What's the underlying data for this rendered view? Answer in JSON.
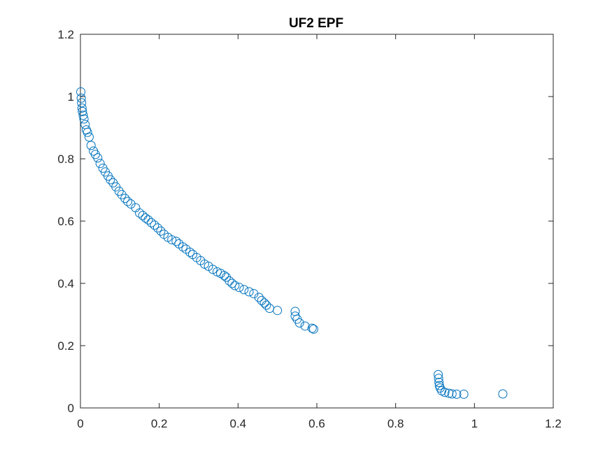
{
  "chart_data": {
    "type": "scatter",
    "title": "UF2 EPF",
    "xlabel": "",
    "ylabel": "",
    "xlim": [
      0,
      1.2
    ],
    "ylim": [
      0,
      1.2
    ],
    "xticks": [
      0,
      0.2,
      0.4,
      0.6,
      0.8,
      1,
      1.2
    ],
    "yticks": [
      0,
      0.2,
      0.4,
      0.6,
      0.8,
      1,
      1.2
    ],
    "xtick_labels": [
      "0",
      "0.2",
      "0.4",
      "0.6",
      "0.8",
      "1",
      "1.2"
    ],
    "ytick_labels": [
      "0",
      "0.2",
      "0.4",
      "0.6",
      "0.8",
      "1",
      "1.2"
    ],
    "grid": false,
    "marker": "circle-open",
    "color": "#0072BD",
    "series": [
      {
        "name": "EPF",
        "points": [
          [
            0.001,
            1.015
          ],
          [
            0.002,
            0.995
          ],
          [
            0.003,
            0.98
          ],
          [
            0.004,
            0.963
          ],
          [
            0.005,
            0.952
          ],
          [
            0.007,
            0.94
          ],
          [
            0.009,
            0.928
          ],
          [
            0.012,
            0.91
          ],
          [
            0.015,
            0.893
          ],
          [
            0.018,
            0.885
          ],
          [
            0.022,
            0.87
          ],
          [
            0.027,
            0.843
          ],
          [
            0.033,
            0.825
          ],
          [
            0.038,
            0.814
          ],
          [
            0.044,
            0.803
          ],
          [
            0.05,
            0.785
          ],
          [
            0.057,
            0.77
          ],
          [
            0.063,
            0.758
          ],
          [
            0.07,
            0.745
          ],
          [
            0.076,
            0.733
          ],
          [
            0.083,
            0.723
          ],
          [
            0.09,
            0.71
          ],
          [
            0.098,
            0.696
          ],
          [
            0.105,
            0.685
          ],
          [
            0.113,
            0.673
          ],
          [
            0.12,
            0.663
          ],
          [
            0.128,
            0.655
          ],
          [
            0.14,
            0.643
          ],
          [
            0.15,
            0.626
          ],
          [
            0.158,
            0.618
          ],
          [
            0.165,
            0.61
          ],
          [
            0.172,
            0.604
          ],
          [
            0.18,
            0.595
          ],
          [
            0.188,
            0.587
          ],
          [
            0.196,
            0.578
          ],
          [
            0.204,
            0.568
          ],
          [
            0.212,
            0.558
          ],
          [
            0.222,
            0.548
          ],
          [
            0.232,
            0.54
          ],
          [
            0.243,
            0.535
          ],
          [
            0.25,
            0.527
          ],
          [
            0.26,
            0.517
          ],
          [
            0.268,
            0.51
          ],
          [
            0.278,
            0.5
          ],
          [
            0.285,
            0.493
          ],
          [
            0.295,
            0.483
          ],
          [
            0.305,
            0.473
          ],
          [
            0.315,
            0.462
          ],
          [
            0.325,
            0.455
          ],
          [
            0.336,
            0.445
          ],
          [
            0.347,
            0.437
          ],
          [
            0.356,
            0.432
          ],
          [
            0.365,
            0.425
          ],
          [
            0.37,
            0.42
          ],
          [
            0.378,
            0.408
          ],
          [
            0.385,
            0.4
          ],
          [
            0.392,
            0.393
          ],
          [
            0.403,
            0.387
          ],
          [
            0.415,
            0.38
          ],
          [
            0.428,
            0.373
          ],
          [
            0.44,
            0.367
          ],
          [
            0.453,
            0.355
          ],
          [
            0.46,
            0.345
          ],
          [
            0.467,
            0.337
          ],
          [
            0.472,
            0.33
          ],
          [
            0.48,
            0.32
          ],
          [
            0.5,
            0.313
          ],
          [
            0.545,
            0.31
          ],
          [
            0.545,
            0.295
          ],
          [
            0.55,
            0.285
          ],
          [
            0.556,
            0.273
          ],
          [
            0.57,
            0.263
          ],
          [
            0.588,
            0.256
          ],
          [
            0.592,
            0.253
          ],
          [
            0.908,
            0.107
          ],
          [
            0.909,
            0.095
          ],
          [
            0.91,
            0.082
          ],
          [
            0.911,
            0.072
          ],
          [
            0.913,
            0.064
          ],
          [
            0.917,
            0.055
          ],
          [
            0.925,
            0.05
          ],
          [
            0.935,
            0.047
          ],
          [
            0.943,
            0.045
          ],
          [
            0.955,
            0.044
          ],
          [
            0.973,
            0.044
          ],
          [
            1.072,
            0.045
          ]
        ]
      }
    ]
  }
}
